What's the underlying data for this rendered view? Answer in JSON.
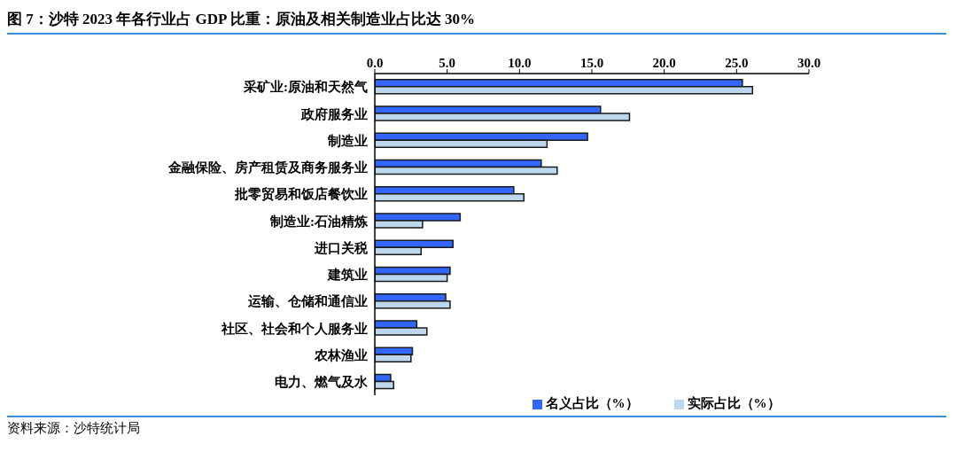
{
  "chart_data": {
    "type": "bar",
    "orientation": "horizontal",
    "title": "图 7：沙特 2023 年各行业占 GDP 比重：原油及相关制造业占比达 30%",
    "categories": [
      "采矿业:原油和天然气",
      "政府服务业",
      "制造业",
      "金融保险、房产租赁及商务服务业",
      "批零贸易和饭店餐饮业",
      "制造业:石油精炼",
      "进口关税",
      "建筑业",
      "运输、仓储和通信业",
      "社区、社会和个人服务业",
      "农林渔业",
      "电力、燃气及水"
    ],
    "series": [
      {
        "name": "名义占比（%）",
        "color": "#3366ff",
        "values": [
          25.4,
          15.6,
          14.7,
          11.5,
          9.6,
          5.9,
          5.4,
          5.2,
          4.9,
          2.9,
          2.6,
          1.1
        ]
      },
      {
        "name": "实际占比（%）",
        "color": "#bdd7ee",
        "values": [
          26.1,
          17.6,
          11.9,
          12.6,
          10.3,
          3.3,
          3.2,
          5.0,
          5.2,
          3.6,
          2.5,
          1.3
        ]
      }
    ],
    "xlim": [
      0,
      30
    ],
    "xticks": [
      {
        "value": 0,
        "label": "0.0"
      },
      {
        "value": 5,
        "label": "5.0"
      },
      {
        "value": 10,
        "label": "10.0"
      },
      {
        "value": 15,
        "label": "15.0"
      },
      {
        "value": 20,
        "label": "20.0"
      },
      {
        "value": 25,
        "label": "25.0"
      },
      {
        "value": 30,
        "label": "30.0"
      }
    ],
    "legend": "bottom",
    "grid": false,
    "annotations": [
      "资料来源：沙特统计局"
    ]
  }
}
